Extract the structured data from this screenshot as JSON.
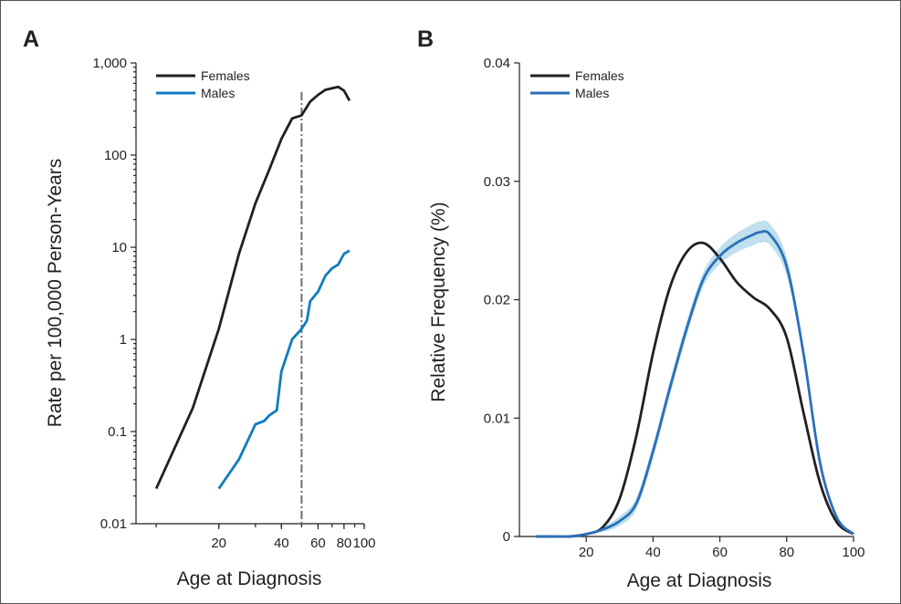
{
  "chart_data": [
    {
      "panel": "A",
      "type": "line",
      "xlabel": "Age at Diagnosis",
      "ylabel": "Rate per 100,000 Person-Years",
      "x_scale": "log",
      "y_scale": "log",
      "xlim": [
        8,
        100
      ],
      "ylim": [
        0.01,
        1000
      ],
      "x_ticks": [
        20,
        40,
        60,
        80,
        100
      ],
      "y_ticks": [
        0.01,
        0.1,
        1,
        10,
        100,
        1000
      ],
      "y_tick_labels": [
        "0.01",
        "0.1",
        "1",
        "10",
        "100",
        "1,000"
      ],
      "x_tick_labels": [
        "20",
        "40",
        "60",
        "80",
        "100"
      ],
      "vertical_reference_line": 50,
      "legend_position": "top-left",
      "series": [
        {
          "name": "Females",
          "color": "#231f20",
          "x": [
            10,
            15,
            20,
            25,
            30,
            35,
            40,
            45,
            50,
            55,
            60,
            65,
            70,
            75,
            80,
            85
          ],
          "y": [
            0.024,
            0.18,
            1.3,
            8.5,
            30,
            70,
            150,
            250,
            270,
            380,
            450,
            510,
            530,
            550,
            500,
            390
          ]
        },
        {
          "name": "Males",
          "color": "#0e7dbf",
          "x": [
            20,
            25,
            30,
            33,
            35,
            38,
            40,
            45,
            50,
            53,
            55,
            60,
            65,
            70,
            75,
            80,
            85
          ],
          "y": [
            0.024,
            0.05,
            0.12,
            0.13,
            0.15,
            0.17,
            0.45,
            1.0,
            1.3,
            1.6,
            2.6,
            3.3,
            4.9,
            5.9,
            6.5,
            8.5,
            9.2
          ]
        }
      ]
    },
    {
      "panel": "B",
      "type": "line",
      "xlabel": "Age at Diagnosis",
      "ylabel": "Relative Frequency (%)",
      "xlim": [
        0,
        100
      ],
      "ylim": [
        0,
        0.04
      ],
      "x_ticks": [
        20,
        40,
        60,
        80,
        100
      ],
      "x_tick_labels": [
        "20",
        "40",
        "60",
        "80",
        "100"
      ],
      "y_ticks": [
        0,
        0.01,
        0.02,
        0.03,
        0.04
      ],
      "y_tick_labels": [
        "0",
        "0.01",
        "0.02",
        "0.03",
        "0.04"
      ],
      "legend_position": "top-left",
      "series": [
        {
          "name": "Females",
          "color": "#231f20",
          "x": [
            5,
            10,
            15,
            20,
            25,
            30,
            35,
            40,
            45,
            50,
            55,
            60,
            65,
            70,
            75,
            80,
            85,
            90,
            95,
            100
          ],
          "y": [
            0,
            0,
            0,
            0.0002,
            0.0008,
            0.0032,
            0.0085,
            0.0155,
            0.021,
            0.024,
            0.0248,
            0.0235,
            0.0215,
            0.0202,
            0.0192,
            0.0168,
            0.0105,
            0.0045,
            0.0012,
            0.0002
          ]
        },
        {
          "name": "Males",
          "color": "#2a6fbb",
          "band_color": "#a9d6e6",
          "x": [
            5,
            10,
            15,
            20,
            25,
            30,
            35,
            40,
            45,
            50,
            55,
            60,
            65,
            70,
            72,
            75,
            80,
            85,
            90,
            95,
            100
          ],
          "y": [
            0,
            0,
            0,
            0.0002,
            0.0006,
            0.0013,
            0.0028,
            0.0072,
            0.0125,
            0.0175,
            0.0217,
            0.0237,
            0.0248,
            0.0255,
            0.0257,
            0.0255,
            0.0228,
            0.0155,
            0.0062,
            0.0016,
            0.0002
          ],
          "ci_width": [
            0,
            0,
            0,
            0,
            0.0002,
            0.0004,
            0.0005,
            0.0006,
            0.0006,
            0.0006,
            0.0006,
            0.0007,
            0.0008,
            0.0009,
            0.0009,
            0.0009,
            0.0008,
            0.0005,
            0.0003,
            0.0002,
            0
          ]
        }
      ]
    }
  ],
  "panels": [
    {
      "letter": "A",
      "legend": [
        "Females",
        "Males"
      ]
    },
    {
      "letter": "B",
      "legend": [
        "Females",
        "Males"
      ]
    }
  ]
}
